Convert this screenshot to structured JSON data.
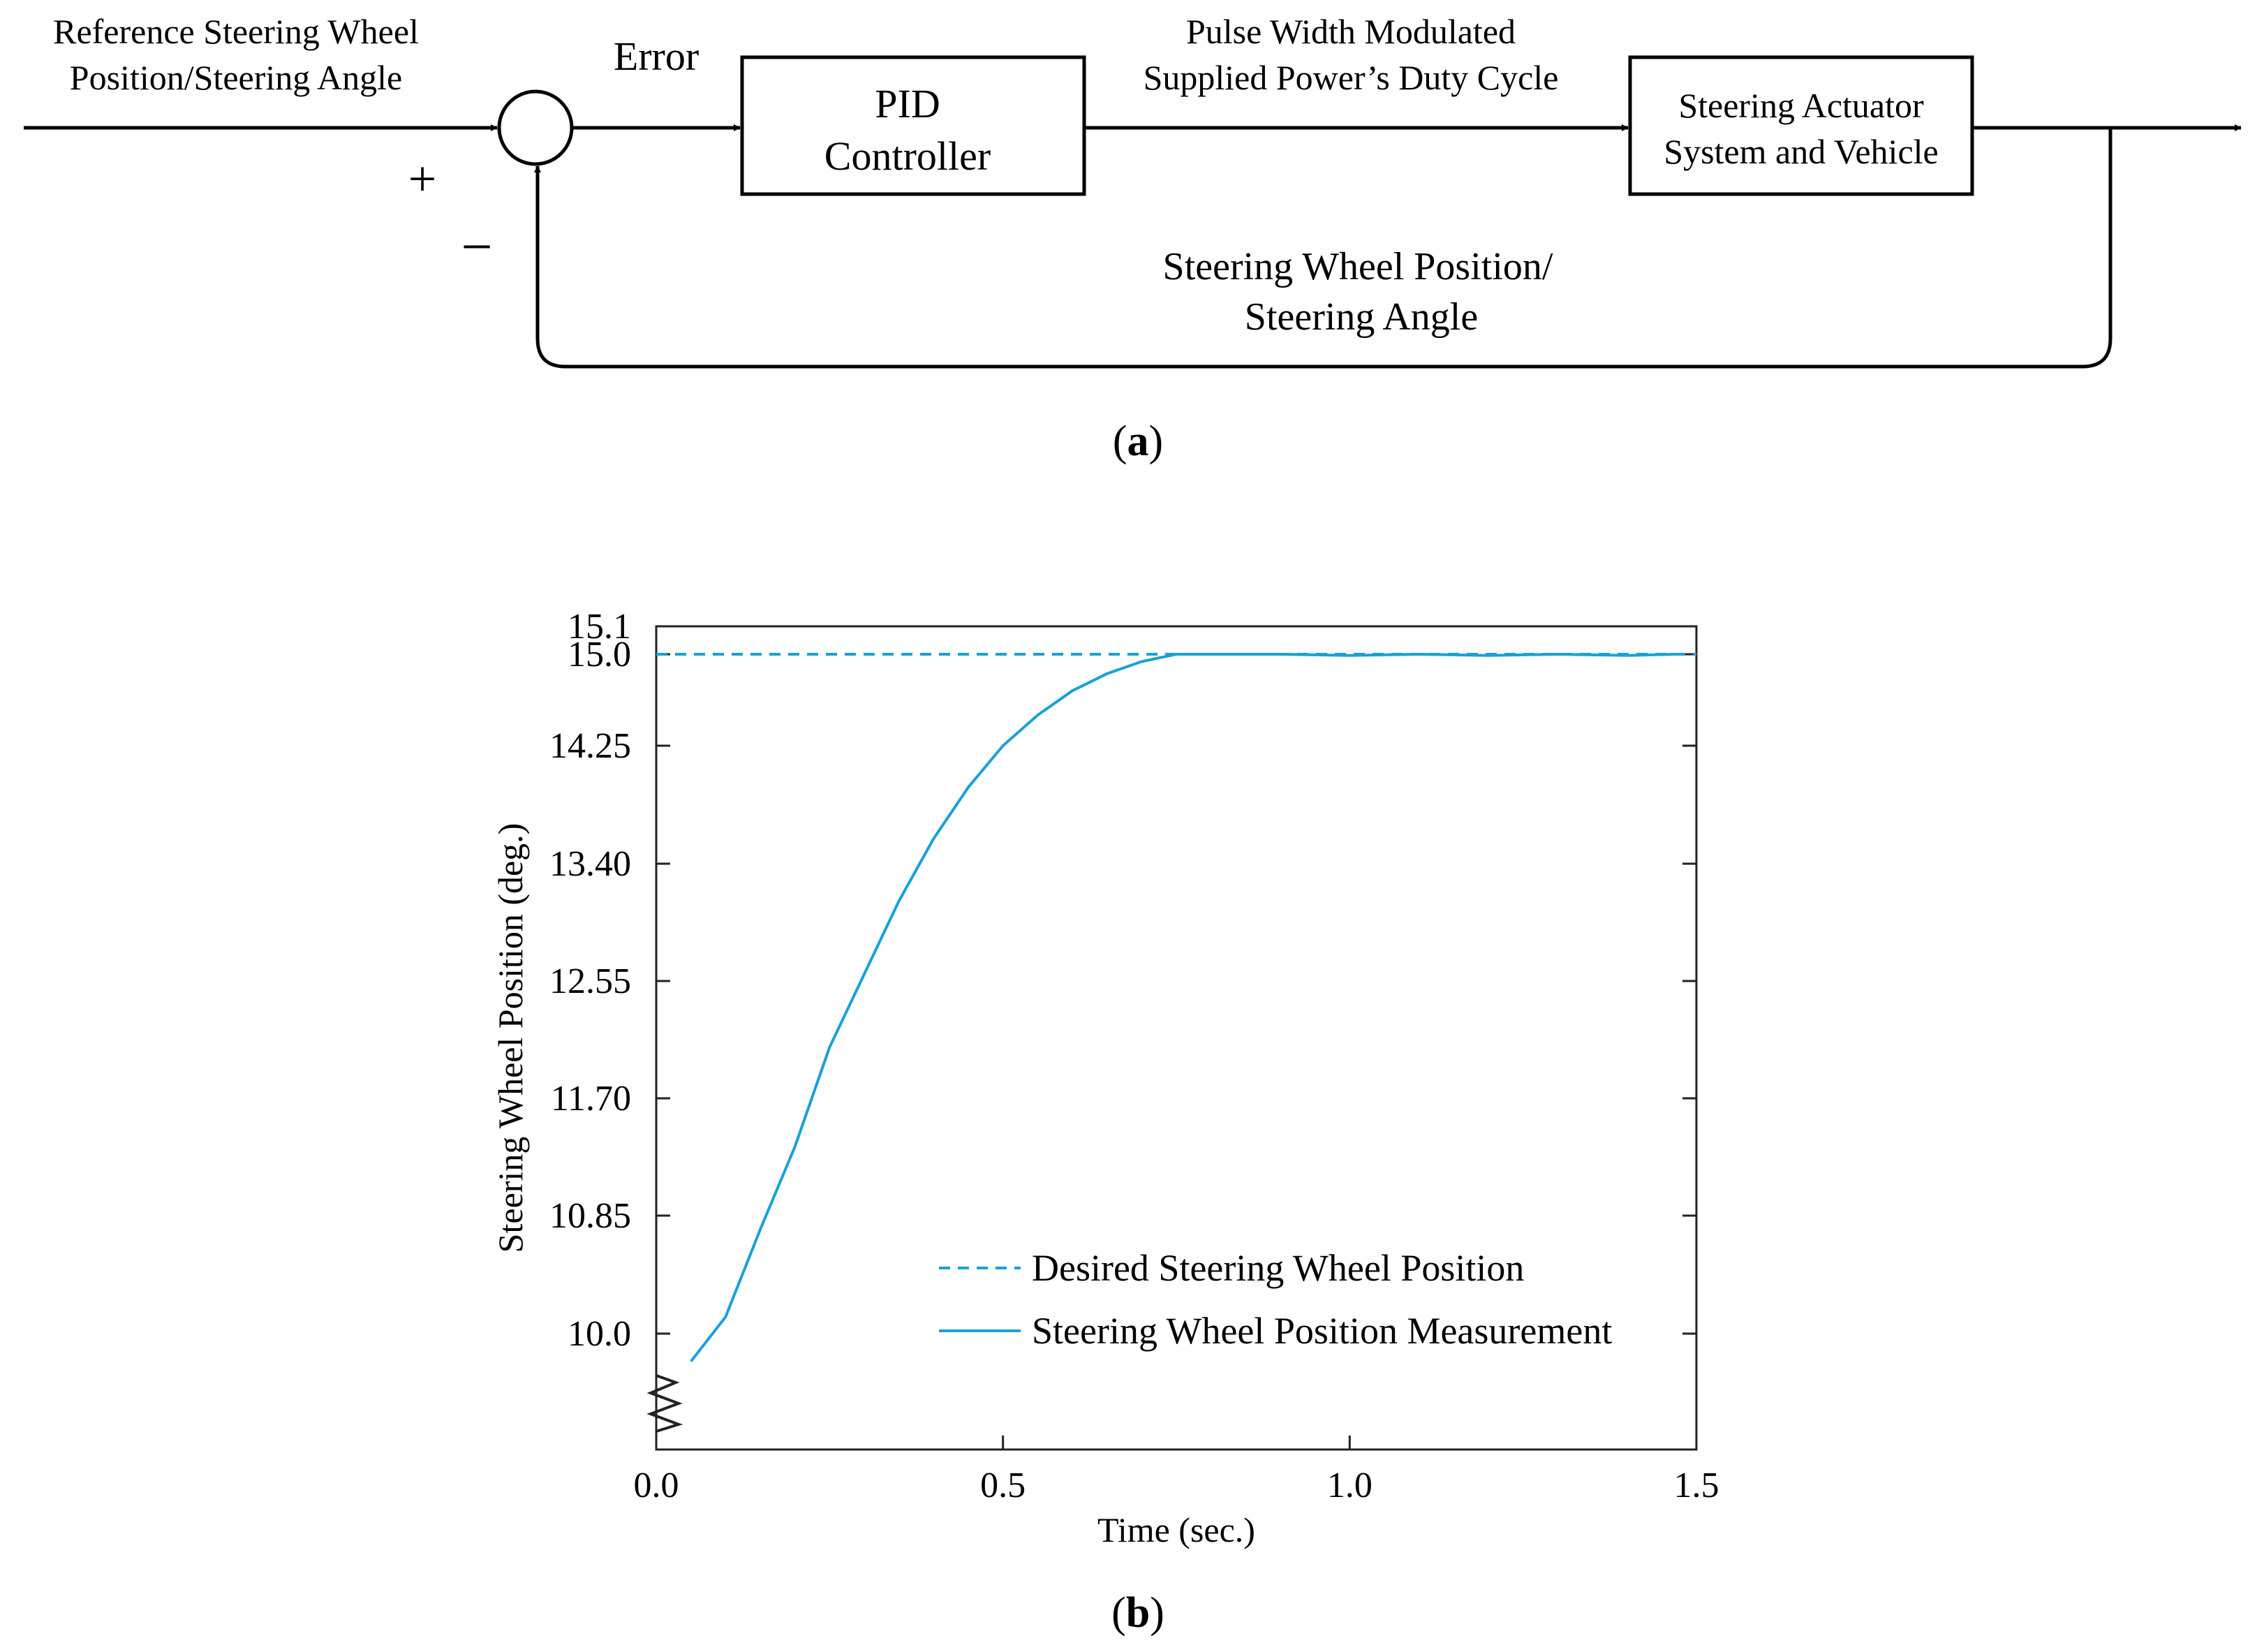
{
  "diagram": {
    "reference_input_label": [
      "Reference Steering Wheel",
      "Position/Steering Angle"
    ],
    "plus_sign": "+",
    "minus_sign": "−",
    "error_label": "Error",
    "controller_label": [
      "PID",
      "Controller"
    ],
    "pwm_label": [
      "Pulse Width Modulated",
      "Supplied Power’s Duty Cycle"
    ],
    "plant_label": [
      "Steering Actuator",
      "System and Vehicle"
    ],
    "feedback_label": [
      "Steering Wheel Position/",
      "Steering Angle"
    ],
    "caption": [
      "(",
      "a",
      ")"
    ]
  },
  "chart_caption": [
    "(",
    "b",
    ")"
  ],
  "chart_data": {
    "type": "line",
    "xlabel": "Time (sec.)",
    "ylabel": "Steering Wheel Position (deg.)",
    "xlim": [
      0.0,
      1.5
    ],
    "x_ticks": [
      "0.0",
      "0.5",
      "1.0",
      "1.5"
    ],
    "y_ticks": [
      "10.0",
      "10.85",
      "11.70",
      "12.55",
      "13.40",
      "14.25",
      "15.0",
      "15.1"
    ],
    "y_axis_break": true,
    "legend_position": "lower-right",
    "colors": {
      "line": "#1aa0d8",
      "axis": "#222222"
    },
    "series": [
      {
        "name": "Desired Steering Wheel Position",
        "style": "dashed",
        "x": [
          0.0,
          1.5
        ],
        "y": [
          15.0,
          15.0
        ]
      },
      {
        "name": "Steering Wheel Position Measurement",
        "style": "solid",
        "x": [
          0.05,
          0.1,
          0.15,
          0.2,
          0.25,
          0.3,
          0.35,
          0.4,
          0.45,
          0.5,
          0.55,
          0.6,
          0.65,
          0.7,
          0.75,
          0.8,
          0.9,
          1.0,
          1.1,
          1.2,
          1.3,
          1.4,
          1.47
        ],
        "y": [
          9.8,
          10.12,
          10.75,
          11.35,
          12.07,
          12.6,
          13.13,
          13.58,
          13.95,
          14.25,
          14.5,
          14.7,
          14.84,
          14.94,
          15.0,
          15.0,
          15.0,
          14.99,
          15.0,
          14.99,
          15.0,
          14.99,
          15.0
        ]
      }
    ]
  }
}
